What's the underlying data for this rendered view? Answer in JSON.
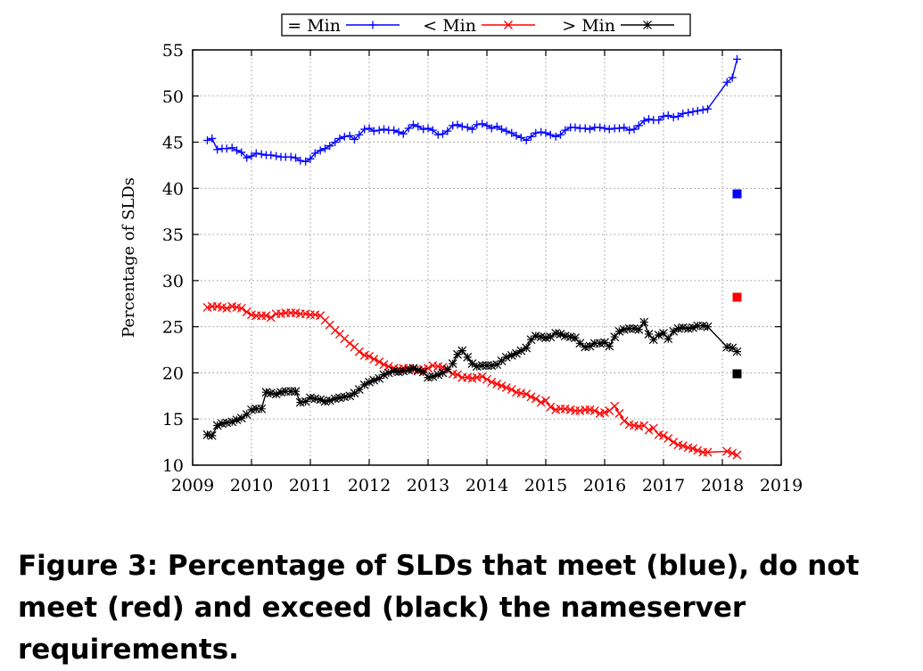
{
  "caption": "Figure 3: Percentage of SLDs that meet (blue), do not meet (red) and exceed (black) the nameserver requirements.",
  "chart_data": {
    "type": "line",
    "title": "",
    "xlabel": "",
    "ylabel": "Percentage of SLDs",
    "xlim": [
      2009,
      2019
    ],
    "ylim": [
      10,
      55
    ],
    "xticks": [
      "2009",
      "2010",
      "2011",
      "2012",
      "2013",
      "2014",
      "2015",
      "2016",
      "2017",
      "2018",
      "2019"
    ],
    "yticks": [
      "10",
      "15",
      "20",
      "25",
      "30",
      "35",
      "40",
      "45",
      "50",
      "55"
    ],
    "grid": true,
    "legend_position": "top-center, above plot",
    "series": [
      {
        "name": "= Min",
        "color": "#0000ff",
        "marker": "plus",
        "x": [
          2009.25,
          2009.33,
          2009.42,
          2009.5,
          2009.58,
          2009.67,
          2009.75,
          2009.83,
          2009.92,
          2010.0,
          2010.08,
          2010.17,
          2010.25,
          2010.33,
          2010.42,
          2010.5,
          2010.58,
          2010.67,
          2010.75,
          2010.83,
          2010.92,
          2011.0,
          2011.08,
          2011.17,
          2011.25,
          2011.33,
          2011.42,
          2011.5,
          2011.58,
          2011.67,
          2011.75,
          2011.83,
          2011.92,
          2012.0,
          2012.08,
          2012.17,
          2012.25,
          2012.33,
          2012.42,
          2012.5,
          2012.58,
          2012.67,
          2012.75,
          2012.83,
          2012.92,
          2013.0,
          2013.08,
          2013.17,
          2013.25,
          2013.33,
          2013.42,
          2013.5,
          2013.58,
          2013.67,
          2013.75,
          2013.83,
          2013.92,
          2014.0,
          2014.08,
          2014.17,
          2014.25,
          2014.33,
          2014.42,
          2014.5,
          2014.58,
          2014.67,
          2014.75,
          2014.83,
          2014.92,
          2015.0,
          2015.08,
          2015.17,
          2015.25,
          2015.33,
          2015.42,
          2015.5,
          2015.58,
          2015.67,
          2015.75,
          2015.83,
          2015.92,
          2016.0,
          2016.08,
          2016.17,
          2016.25,
          2016.33,
          2016.42,
          2016.5,
          2016.58,
          2016.67,
          2016.75,
          2016.83,
          2016.92,
          2017.0,
          2017.08,
          2017.17,
          2017.25,
          2017.33,
          2017.42,
          2017.5,
          2017.58,
          2017.67,
          2017.75,
          2018.08,
          2018.17,
          2018.25
        ],
        "y": [
          45.2,
          45.4,
          44.2,
          44.3,
          44.3,
          44.4,
          44.1,
          43.9,
          43.3,
          43.5,
          43.8,
          43.7,
          43.6,
          43.6,
          43.5,
          43.4,
          43.4,
          43.4,
          43.3,
          43.0,
          42.9,
          43.2,
          43.8,
          44.1,
          44.3,
          44.6,
          45.0,
          45.4,
          45.6,
          45.7,
          45.3,
          45.8,
          46.4,
          46.5,
          46.2,
          46.3,
          46.4,
          46.3,
          46.3,
          46.1,
          45.9,
          46.5,
          46.9,
          46.7,
          46.4,
          46.5,
          46.3,
          45.8,
          45.9,
          46.2,
          46.8,
          46.9,
          46.7,
          46.6,
          46.4,
          46.9,
          47.0,
          46.8,
          46.5,
          46.7,
          46.4,
          46.2,
          46.0,
          45.7,
          45.5,
          45.2,
          45.6,
          46.0,
          46.1,
          46.0,
          45.8,
          45.6,
          45.8,
          46.3,
          46.6,
          46.6,
          46.5,
          46.5,
          46.4,
          46.6,
          46.6,
          46.5,
          46.4,
          46.5,
          46.5,
          46.6,
          46.3,
          46.4,
          46.8,
          47.3,
          47.5,
          47.4,
          47.4,
          47.8,
          47.9,
          47.7,
          47.8,
          48.1,
          48.2,
          48.3,
          48.4,
          48.5,
          48.6,
          51.5,
          52.0,
          54.0
        ]
      },
      {
        "name": "< Min",
        "color": "#ff0000",
        "marker": "cross",
        "x": [
          2009.25,
          2009.33,
          2009.42,
          2009.5,
          2009.58,
          2009.67,
          2009.75,
          2009.83,
          2009.92,
          2010.0,
          2010.08,
          2010.17,
          2010.25,
          2010.33,
          2010.42,
          2010.5,
          2010.58,
          2010.67,
          2010.75,
          2010.83,
          2010.92,
          2011.0,
          2011.08,
          2011.17,
          2011.25,
          2011.33,
          2011.42,
          2011.5,
          2011.58,
          2011.67,
          2011.75,
          2011.83,
          2011.92,
          2012.0,
          2012.08,
          2012.17,
          2012.25,
          2012.33,
          2012.42,
          2012.5,
          2012.58,
          2012.67,
          2012.75,
          2012.83,
          2012.92,
          2013.0,
          2013.08,
          2013.17,
          2013.25,
          2013.33,
          2013.42,
          2013.5,
          2013.58,
          2013.67,
          2013.75,
          2013.83,
          2013.92,
          2014.0,
          2014.08,
          2014.17,
          2014.25,
          2014.33,
          2014.42,
          2014.5,
          2014.58,
          2014.67,
          2014.75,
          2014.83,
          2014.92,
          2015.0,
          2015.08,
          2015.17,
          2015.25,
          2015.33,
          2015.42,
          2015.5,
          2015.58,
          2015.67,
          2015.75,
          2015.83,
          2015.92,
          2016.0,
          2016.08,
          2016.17,
          2016.25,
          2016.33,
          2016.42,
          2016.5,
          2016.58,
          2016.67,
          2016.75,
          2016.83,
          2016.92,
          2017.0,
          2017.08,
          2017.17,
          2017.25,
          2017.33,
          2017.42,
          2017.5,
          2017.58,
          2017.67,
          2017.75,
          2018.08,
          2018.17,
          2018.25
        ],
        "y": [
          27.1,
          27.2,
          27.2,
          27.1,
          27.0,
          27.2,
          27.1,
          27.0,
          26.6,
          26.3,
          26.2,
          26.2,
          26.2,
          26.0,
          26.4,
          26.4,
          26.5,
          26.5,
          26.5,
          26.4,
          26.4,
          26.3,
          26.3,
          26.2,
          25.7,
          25.2,
          24.6,
          24.2,
          23.7,
          23.2,
          22.8,
          22.3,
          21.9,
          21.8,
          21.5,
          21.2,
          20.9,
          20.7,
          20.5,
          20.4,
          20.5,
          20.5,
          20.4,
          20.2,
          20.4,
          20.5,
          20.8,
          20.7,
          20.6,
          20.3,
          19.9,
          19.8,
          19.5,
          19.5,
          19.4,
          19.5,
          19.6,
          19.3,
          19.0,
          18.8,
          18.6,
          18.4,
          18.2,
          17.9,
          17.8,
          17.7,
          17.4,
          17.2,
          16.8,
          17.0,
          16.3,
          16.0,
          16.1,
          16.1,
          16.0,
          15.9,
          15.9,
          16.0,
          16.0,
          15.9,
          15.6,
          15.7,
          15.9,
          16.4,
          15.6,
          14.8,
          14.4,
          14.3,
          14.2,
          14.3,
          13.8,
          14.0,
          13.3,
          13.2,
          12.9,
          12.5,
          12.2,
          12.1,
          11.9,
          11.8,
          11.6,
          11.4,
          11.4,
          11.5,
          11.3,
          11.1
        ]
      },
      {
        "name": "> Min",
        "color": "#000000",
        "marker": "asterisk",
        "x": [
          2009.25,
          2009.33,
          2009.42,
          2009.5,
          2009.58,
          2009.67,
          2009.75,
          2009.83,
          2009.92,
          2010.0,
          2010.08,
          2010.17,
          2010.25,
          2010.33,
          2010.42,
          2010.5,
          2010.58,
          2010.67,
          2010.75,
          2010.83,
          2010.92,
          2011.0,
          2011.08,
          2011.17,
          2011.25,
          2011.33,
          2011.42,
          2011.5,
          2011.58,
          2011.67,
          2011.75,
          2011.83,
          2011.92,
          2012.0,
          2012.08,
          2012.17,
          2012.25,
          2012.33,
          2012.42,
          2012.5,
          2012.58,
          2012.67,
          2012.75,
          2012.83,
          2012.92,
          2013.0,
          2013.08,
          2013.17,
          2013.25,
          2013.33,
          2013.42,
          2013.5,
          2013.58,
          2013.67,
          2013.75,
          2013.83,
          2013.92,
          2014.0,
          2014.08,
          2014.17,
          2014.25,
          2014.33,
          2014.42,
          2014.5,
          2014.58,
          2014.67,
          2014.75,
          2014.83,
          2014.92,
          2015.0,
          2015.08,
          2015.17,
          2015.25,
          2015.33,
          2015.42,
          2015.5,
          2015.58,
          2015.67,
          2015.75,
          2015.83,
          2015.92,
          2016.0,
          2016.08,
          2016.17,
          2016.25,
          2016.33,
          2016.42,
          2016.5,
          2016.58,
          2016.67,
          2016.75,
          2016.83,
          2016.92,
          2017.0,
          2017.08,
          2017.17,
          2017.25,
          2017.33,
          2017.42,
          2017.5,
          2017.58,
          2017.67,
          2017.75,
          2018.08,
          2018.17,
          2018.25
        ],
        "y": [
          13.3,
          13.2,
          14.3,
          14.5,
          14.6,
          14.7,
          14.9,
          15.1,
          15.5,
          16.0,
          16.1,
          16.1,
          17.9,
          17.8,
          17.7,
          17.9,
          18.0,
          18.0,
          18.0,
          16.8,
          16.9,
          17.3,
          17.2,
          17.1,
          16.9,
          17.0,
          17.2,
          17.3,
          17.4,
          17.5,
          17.8,
          18.2,
          18.7,
          19.0,
          19.2,
          19.4,
          19.8,
          20.0,
          20.2,
          20.1,
          20.2,
          20.3,
          20.5,
          20.3,
          20.1,
          19.5,
          19.6,
          19.8,
          20.0,
          20.4,
          21.0,
          22.0,
          22.4,
          21.7,
          21.0,
          20.7,
          20.8,
          20.8,
          20.8,
          20.9,
          21.3,
          21.7,
          21.9,
          22.1,
          22.4,
          22.7,
          23.6,
          24.0,
          23.9,
          23.8,
          23.9,
          24.3,
          24.2,
          24.0,
          23.9,
          23.8,
          23.2,
          22.8,
          22.9,
          23.2,
          23.2,
          23.3,
          22.9,
          23.9,
          24.5,
          24.7,
          24.8,
          24.8,
          24.7,
          25.5,
          24.2,
          23.6,
          24.1,
          24.3,
          23.7,
          24.5,
          24.8,
          24.9,
          24.8,
          24.9,
          25.1,
          25.1,
          25.0,
          22.8,
          22.7,
          22.3
        ]
      }
    ],
    "square_markers": [
      {
        "color": "#0000ff",
        "x": 2018.25,
        "y": 39.4
      },
      {
        "color": "#ff0000",
        "x": 2018.25,
        "y": 28.2
      },
      {
        "color": "#000000",
        "x": 2018.25,
        "y": 19.9
      }
    ]
  }
}
